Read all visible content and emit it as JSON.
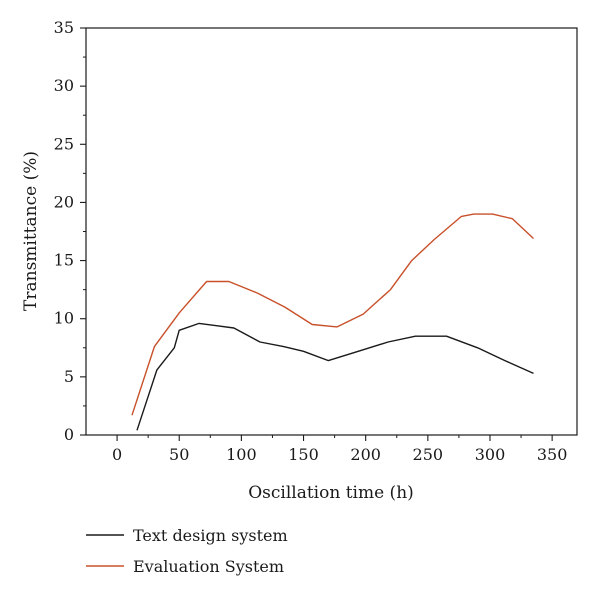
{
  "chart_data": {
    "type": "line",
    "title": "",
    "xlabel": "Oscillation time (h)",
    "ylabel": "Transmittance (%)",
    "xlim": [
      -25,
      370
    ],
    "ylim": [
      0,
      35
    ],
    "xticks": [
      0,
      50,
      100,
      150,
      200,
      250,
      300,
      350
    ],
    "yticks": [
      0,
      5,
      10,
      15,
      20,
      25,
      30,
      35
    ],
    "xtick_labels": [
      "0",
      "50",
      "100",
      "150",
      "200",
      "250",
      "300",
      "350"
    ],
    "ytick_labels": [
      "0",
      "5",
      "10",
      "15",
      "20",
      "25",
      "30",
      "35"
    ],
    "grid": false,
    "legend_position": "bottom-left, below plot",
    "series": [
      {
        "name": "Text design system",
        "color": "#1a1a1a",
        "x": [
          16,
          32,
          46,
          50,
          66,
          80,
          94,
          115,
          134,
          150,
          170,
          194,
          218,
          240,
          265,
          290,
          312,
          335
        ],
        "y": [
          0.4,
          5.6,
          7.5,
          9.0,
          9.6,
          9.4,
          9.2,
          8.0,
          7.6,
          7.2,
          6.4,
          7.2,
          8.0,
          8.5,
          8.5,
          7.5,
          6.4,
          5.3
        ]
      },
      {
        "name": "Evaluation System",
        "color": "#c8502a",
        "x": [
          12,
          30,
          50,
          72,
          90,
          113,
          135,
          157,
          177,
          198,
          220,
          237,
          255,
          277,
          287,
          302,
          318,
          335
        ],
        "y": [
          1.7,
          7.6,
          10.5,
          13.2,
          13.2,
          12.2,
          11.0,
          9.5,
          9.3,
          10.4,
          12.5,
          15.0,
          16.8,
          18.8,
          19.0,
          19.0,
          18.6,
          16.9
        ]
      }
    ]
  }
}
